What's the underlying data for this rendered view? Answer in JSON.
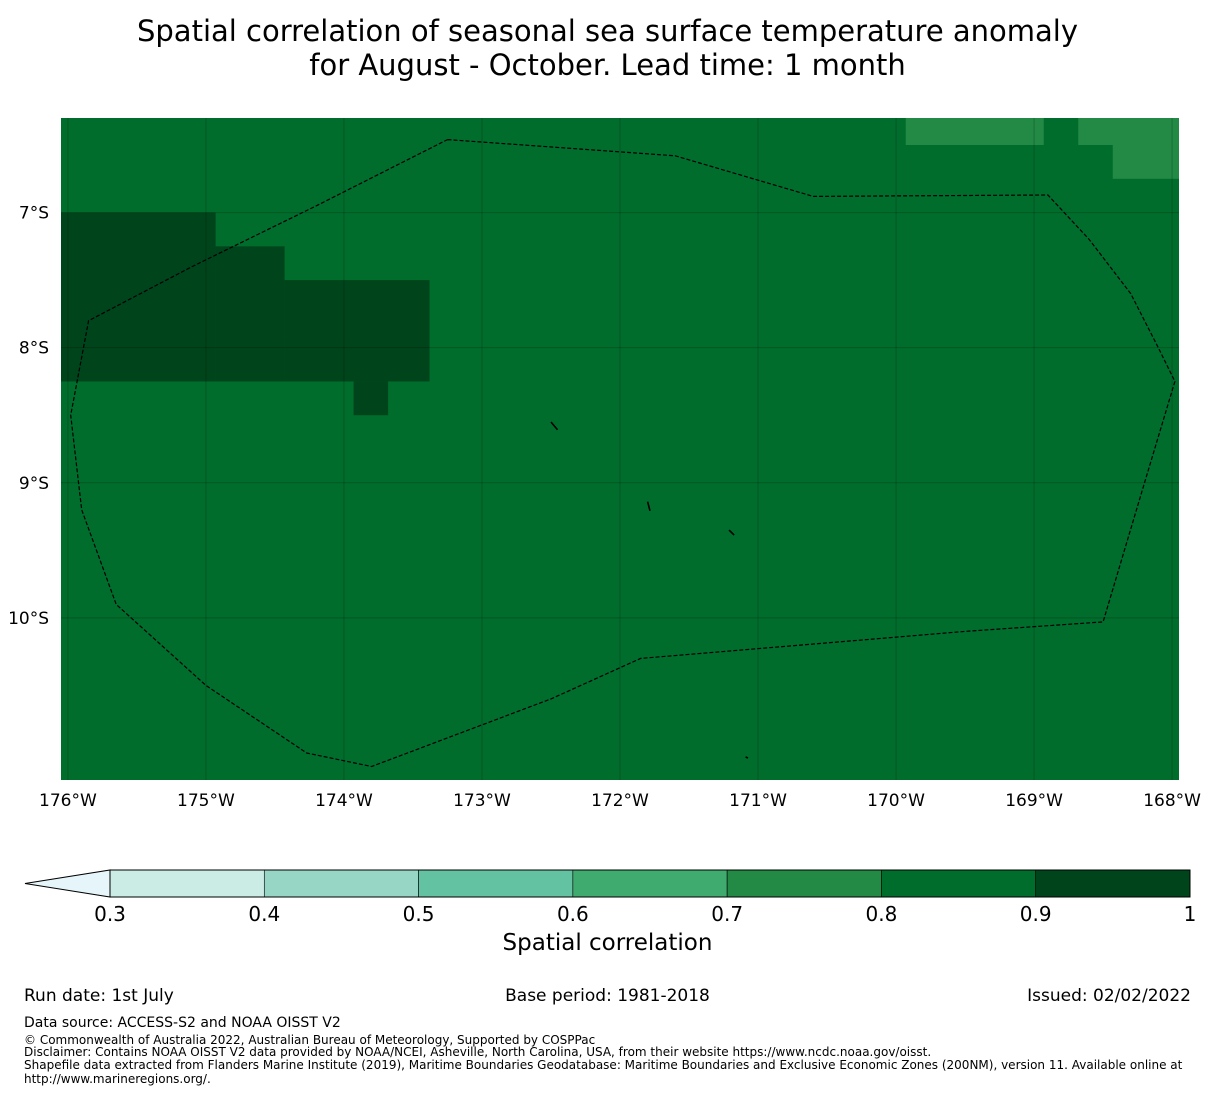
{
  "title": {
    "line1": "Spatial correlation of seasonal sea surface temperature anomaly",
    "line2": "for August - October. Lead time: 1 month"
  },
  "chart_data": {
    "type": "heatmap",
    "title": "Spatial correlation of seasonal sea surface temperature anomaly for August - October. Lead time: 1 month",
    "xlim": [
      -176.05,
      -167.95
    ],
    "ylim": [
      -11.2,
      -6.3
    ],
    "x_ticks": [
      -176,
      -175,
      -174,
      -173,
      -172,
      -171,
      -170,
      -169,
      -168
    ],
    "x_tick_labels": [
      "176°W",
      "175°W",
      "174°W",
      "173°W",
      "172°W",
      "171°W",
      "170°W",
      "169°W",
      "168°W"
    ],
    "y_ticks": [
      -7,
      -8,
      -9,
      -10
    ],
    "y_tick_labels": [
      "7°S",
      "8°S",
      "9°S",
      "10°S"
    ],
    "background_level": 0.85,
    "cells": [
      {
        "lon": [
          -176.05,
          -174.93
        ],
        "lat": [
          -8.25,
          -7.0
        ],
        "level": 0.95
      },
      {
        "lon": [
          -174.93,
          -174.43
        ],
        "lat": [
          -8.25,
          -7.25
        ],
        "level": 0.95
      },
      {
        "lon": [
          -174.43,
          -173.38
        ],
        "lat": [
          -8.25,
          -7.5
        ],
        "level": 0.95
      },
      {
        "lon": [
          -173.93,
          -173.68
        ],
        "lat": [
          -8.5,
          -8.25
        ],
        "level": 0.95
      },
      {
        "lon": [
          -169.93,
          -168.93
        ],
        "lat": [
          -6.5,
          -6.3
        ],
        "level": 0.75
      },
      {
        "lon": [
          -168.68,
          -167.95
        ],
        "lat": [
          -6.5,
          -6.3
        ],
        "level": 0.75
      },
      {
        "lon": [
          -168.43,
          -167.95
        ],
        "lat": [
          -6.75,
          -6.5
        ],
        "level": 0.75
      }
    ],
    "eez_boundary": [
      [
        -173.25,
        -6.46
      ],
      [
        -171.6,
        -6.58
      ],
      [
        -170.6,
        -6.88
      ],
      [
        -168.9,
        -6.87
      ],
      [
        -168.6,
        -7.2
      ],
      [
        -168.3,
        -7.6
      ],
      [
        -168.1,
        -8.0
      ],
      [
        -167.98,
        -8.25
      ],
      [
        -168.2,
        -9.0
      ],
      [
        -168.5,
        -10.03
      ],
      [
        -169.5,
        -10.1
      ],
      [
        -171.85,
        -10.3
      ],
      [
        -172.5,
        -10.6
      ],
      [
        -173.8,
        -11.1
      ],
      [
        -174.27,
        -11.0
      ],
      [
        -175.0,
        -10.5
      ],
      [
        -175.65,
        -9.9
      ],
      [
        -175.9,
        -9.2
      ],
      [
        -175.98,
        -8.5
      ],
      [
        -175.85,
        -7.8
      ],
      [
        -175.1,
        -7.4
      ],
      [
        -174.2,
        -6.95
      ],
      [
        -173.25,
        -6.46
      ]
    ],
    "islands": [
      [
        [
          -172.5,
          -8.55
        ],
        [
          -172.46,
          -8.6
        ]
      ],
      [
        [
          -171.8,
          -9.14
        ],
        [
          -171.79,
          -9.2
        ]
      ],
      [
        [
          -171.21,
          -9.35
        ],
        [
          -171.18,
          -9.38
        ]
      ],
      [
        [
          -171.09,
          -11.03
        ],
        [
          -171.08,
          -11.03
        ]
      ]
    ],
    "colorbar": {
      "label": "Spatial correlation",
      "boundaries": [
        0.3,
        0.4,
        0.5,
        0.6,
        0.7,
        0.8,
        0.9,
        1
      ],
      "tick_labels": [
        "0.3",
        "0.4",
        "0.5",
        "0.6",
        "0.7",
        "0.8",
        "0.9",
        "1"
      ],
      "colors": [
        "#cbece4",
        "#97d6c4",
        "#63c2a1",
        "#3fab6e",
        "#228a44",
        "#006d2c",
        "#00441b"
      ],
      "under_color": "#e5f5f9"
    }
  },
  "footer": {
    "run_date": "Run date: 1st July",
    "base_period": "Base period: 1981-2018",
    "issued": "Issued: 02/02/2022",
    "data_source": "Data source: ACCESS-S2 and NOAA OISST V2",
    "copyright": "© Commonwealth of Australia 2022, Australian Bureau of Meteorology, Supported by COSPPac",
    "disclaimer": "Disclaimer: Contains NOAA OISST V2 data provided by NOAA/NCEI, Asheville, North Carolina, USA, from their website https://www.ncdc.noaa.gov/oisst.",
    "shapefile_line1": "Shapefile data extracted from Flanders Marine Institute (2019), Maritime Boundaries Geodatabase: Maritime Boundaries and Exclusive Economic Zones (200NM), version 11. Available online at",
    "shapefile_line2": "http://www.marineregions.org/."
  }
}
